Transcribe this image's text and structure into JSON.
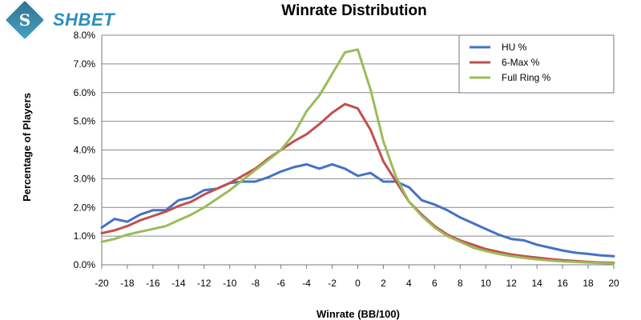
{
  "logo": {
    "mark": "S",
    "text": "SHBET"
  },
  "chart_data": {
    "type": "line",
    "title": "Winrate Distribution",
    "xlabel": "Winrate (BB/100)",
    "ylabel": "Percentage of Players",
    "xlim": [
      -20,
      20
    ],
    "ylim": [
      0,
      8
    ],
    "x_ticks": [
      -20,
      -18,
      -16,
      -14,
      -12,
      -10,
      -8,
      -6,
      -4,
      -2,
      0,
      2,
      4,
      6,
      8,
      10,
      12,
      14,
      16,
      18,
      20
    ],
    "y_ticks": [
      "0.0%",
      "1.0%",
      "2.0%",
      "3.0%",
      "4.0%",
      "5.0%",
      "6.0%",
      "7.0%",
      "8.0%"
    ],
    "grid": "horizontal",
    "legend_position": "top-right",
    "x": [
      -20,
      -19,
      -18,
      -17,
      -16,
      -15,
      -14,
      -13,
      -12,
      -11,
      -10,
      -9,
      -8,
      -7,
      -6,
      -5,
      -4,
      -3,
      -2,
      -1,
      0,
      1,
      2,
      3,
      4,
      5,
      6,
      7,
      8,
      9,
      10,
      11,
      12,
      13,
      14,
      15,
      16,
      17,
      18,
      19,
      20
    ],
    "series": [
      {
        "name": "HU %",
        "color": "#4472c4",
        "values": [
          1.3,
          1.6,
          1.5,
          1.75,
          1.9,
          1.9,
          2.25,
          2.35,
          2.6,
          2.65,
          2.85,
          2.9,
          2.9,
          3.05,
          3.25,
          3.4,
          3.5,
          3.35,
          3.5,
          3.35,
          3.1,
          3.2,
          2.9,
          2.9,
          2.7,
          2.25,
          2.1,
          1.9,
          1.65,
          1.45,
          1.25,
          1.05,
          0.9,
          0.85,
          0.7,
          0.6,
          0.5,
          0.42,
          0.38,
          0.33,
          0.3
        ]
      },
      {
        "name": "6-Max %",
        "color": "#c0504d",
        "values": [
          1.1,
          1.2,
          1.35,
          1.55,
          1.7,
          1.85,
          2.05,
          2.2,
          2.45,
          2.65,
          2.85,
          3.1,
          3.35,
          3.7,
          4.0,
          4.3,
          4.55,
          4.9,
          5.3,
          5.6,
          5.45,
          4.7,
          3.6,
          2.9,
          2.2,
          1.75,
          1.35,
          1.05,
          0.85,
          0.7,
          0.55,
          0.45,
          0.36,
          0.3,
          0.25,
          0.2,
          0.16,
          0.13,
          0.1,
          0.08,
          0.07
        ]
      },
      {
        "name": "Full Ring %",
        "color": "#9bbb59",
        "values": [
          0.8,
          0.9,
          1.05,
          1.15,
          1.25,
          1.35,
          1.55,
          1.75,
          2.0,
          2.3,
          2.6,
          2.95,
          3.3,
          3.65,
          4.0,
          4.55,
          5.35,
          5.9,
          6.65,
          7.4,
          7.5,
          6.1,
          4.3,
          3.05,
          2.2,
          1.7,
          1.3,
          1.0,
          0.8,
          0.6,
          0.48,
          0.38,
          0.3,
          0.24,
          0.19,
          0.15,
          0.12,
          0.1,
          0.08,
          0.06,
          0.05
        ]
      }
    ]
  }
}
